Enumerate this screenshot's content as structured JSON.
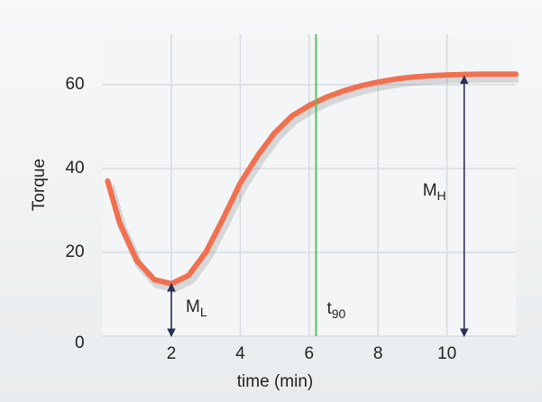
{
  "chart_data": {
    "type": "line",
    "x_label": "time (min)",
    "y_label": "Torque",
    "x": [
      0.15,
      0.5,
      1,
      1.5,
      2,
      2.5,
      3,
      3.5,
      4,
      4.5,
      5,
      5.5,
      6,
      6.5,
      7,
      7.5,
      8,
      8.5,
      9,
      9.5,
      10,
      10.5,
      11,
      11.5,
      12
    ],
    "values": [
      37,
      27,
      18,
      13.5,
      12.5,
      14.5,
      20,
      28,
      36.5,
      43,
      48.5,
      52.5,
      55,
      57,
      58.5,
      59.7,
      60.6,
      61.3,
      61.8,
      62.1,
      62.3,
      62.4,
      62.5,
      62.5,
      62.5
    ],
    "color": "#f07050",
    "xlim": [
      0,
      12
    ],
    "ylim": [
      0,
      72
    ],
    "xticks": [
      2,
      4,
      6,
      8,
      10
    ],
    "yticks": [
      0,
      20,
      40,
      60
    ],
    "grid": true,
    "annotations": [
      {
        "text": "M",
        "sub": "L",
        "x": 2,
        "value": 12.5
      },
      {
        "text": "t",
        "sub": "90",
        "x": 6.2
      },
      {
        "text": "M",
        "sub": "H",
        "x": 10.5,
        "value": 62
      }
    ]
  }
}
